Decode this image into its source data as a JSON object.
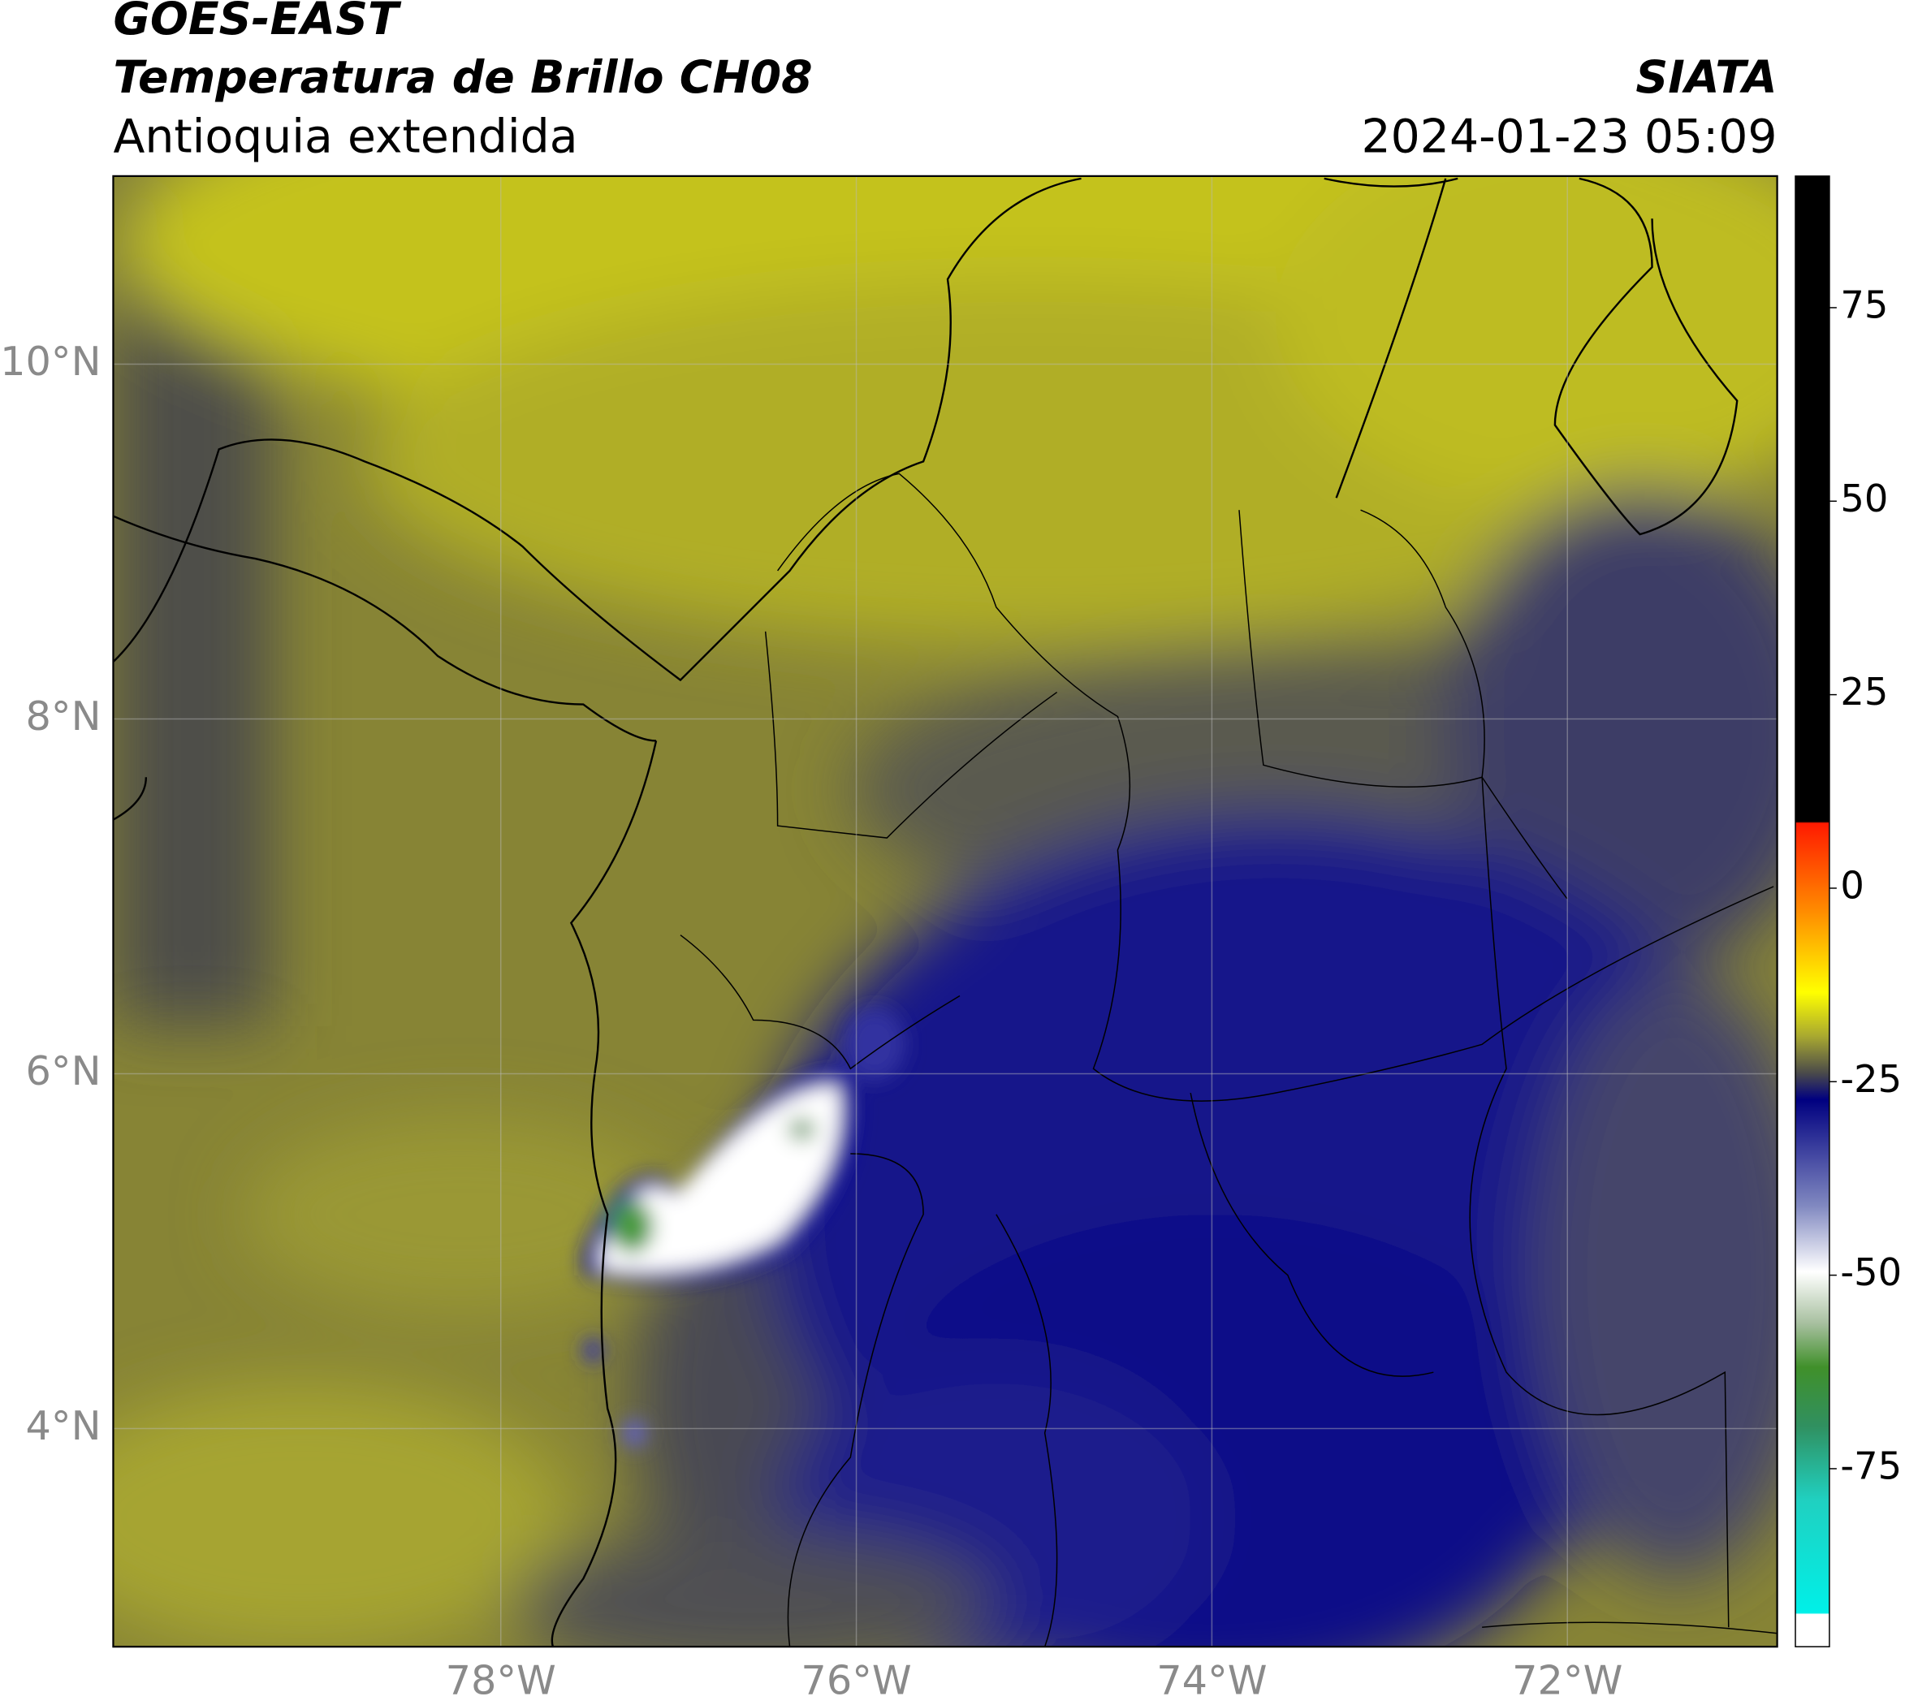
{
  "header": {
    "title": "GOES-EAST",
    "subtitle": "Temperatura de Brillo CH08",
    "region": "Antioquia extendida",
    "source": "SIATA",
    "datetime": "2024-01-23 05:09"
  },
  "map": {
    "xlim": [
      -80.18,
      -70.82
    ],
    "ylim": [
      2.77,
      11.06
    ],
    "xticks": [
      {
        "value": -78,
        "label": "78°W"
      },
      {
        "value": -76,
        "label": "76°W"
      },
      {
        "value": -74,
        "label": "74°W"
      },
      {
        "value": -72,
        "label": "72°W"
      }
    ],
    "yticks": [
      {
        "value": 10,
        "label": "10°N"
      },
      {
        "value": 8,
        "label": "8°N"
      },
      {
        "value": 6,
        "label": "6°N"
      },
      {
        "value": 4,
        "label": "4°N"
      }
    ],
    "grid": true
  },
  "colorbar": {
    "lim": [
      -98,
      92
    ],
    "ticks": [
      75,
      50,
      25,
      0,
      -25,
      -50,
      -75
    ]
  }
}
